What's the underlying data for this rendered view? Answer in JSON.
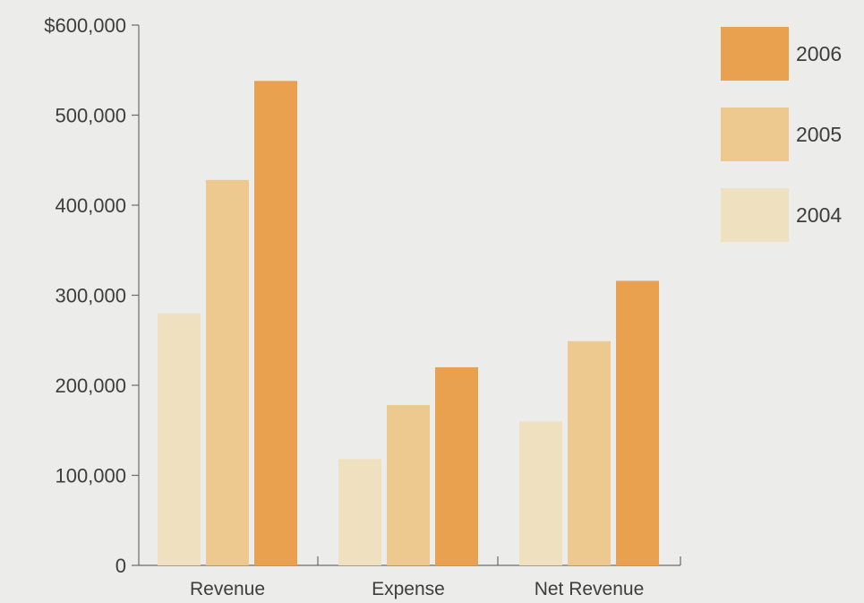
{
  "chart_data": {
    "type": "bar",
    "title": "",
    "xlabel": "",
    "ylabel": "",
    "categories": [
      "Revenue",
      "Expense",
      "Net Revenue"
    ],
    "series": [
      {
        "name": "2004",
        "color": "#efe0c0",
        "values": [
          280000,
          118000,
          160000
        ]
      },
      {
        "name": "2005",
        "color": "#edc98f",
        "values": [
          428000,
          178000,
          249000
        ]
      },
      {
        "name": "2006",
        "color": "#e9a04f",
        "values": [
          538000,
          220000,
          316000
        ]
      }
    ],
    "ylim": [
      0,
      600000
    ],
    "yticks": [
      0,
      100000,
      200000,
      300000,
      400000,
      500000,
      600000
    ],
    "ytick_labels": [
      "0",
      "100,000",
      "200,000",
      "300,000",
      "400,000",
      "500,000",
      "$600,000"
    ],
    "legend": {
      "position": "top-right",
      "order": [
        "2006",
        "2005",
        "2004"
      ]
    },
    "grid": false
  }
}
